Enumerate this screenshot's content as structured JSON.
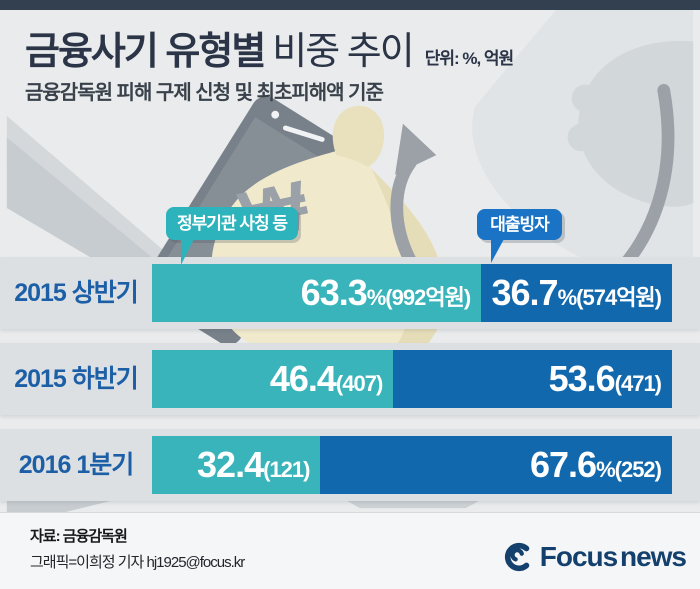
{
  "header": {
    "title_strong": "금융사기 유형별",
    "title_rest": "비중 추이",
    "unit": "단위: %, 억원",
    "subtitle": "금융감독원 피해 구제 신청 및 최초피해액 기준"
  },
  "legend": {
    "teal_label": "정부기관 사칭 등",
    "blue_label": "대출빙자"
  },
  "rows": [
    {
      "label": "2015 상반기",
      "teal_big": "63.3",
      "teal_small": "%(992억원)",
      "blue_big": "36.7",
      "blue_small": "%(574억원)",
      "teal_pct": 63.3
    },
    {
      "label": "2015 하반기",
      "teal_big": "46.4",
      "teal_small": "(407)",
      "blue_big": "53.6",
      "blue_small": "(471)",
      "teal_pct": 46.4
    },
    {
      "label": "2016 1분기",
      "teal_big": "32.4",
      "teal_small": "(121)",
      "blue_big": "67.6",
      "blue_small": "%(252)",
      "teal_pct": 32.4
    }
  ],
  "illustration": {
    "money_symbol": "₩"
  },
  "footer": {
    "source": "자료: 금융감독원",
    "credit": "그래픽=이희정 기자 hj1925@focus.kr",
    "logo_text": "Focus news"
  },
  "colors": {
    "topbar": "#32404f",
    "teal_bar": "#39b4ba",
    "blue_bar": "#1268ad",
    "teal_bubble": "#2cb3bb",
    "blue_bubble": "#1a73c4",
    "row_band": "#dce0e3",
    "row_label_text": "#1d5fa7",
    "logo_navy": "#14406e"
  },
  "chart_data": {
    "type": "bar",
    "orientation": "horizontal-stacked-100pct",
    "title": "금융사기 유형별 비중 추이",
    "unit": "%, 억원",
    "basis": "금융감독원 피해 구제 신청 및 최초피해액 기준",
    "categories": [
      "2015 상반기",
      "2015 하반기",
      "2016 1분기"
    ],
    "series": [
      {
        "name": "정부기관 사칭 등",
        "values_pct": [
          63.3,
          46.4,
          32.4
        ],
        "amounts_eokwon": [
          992,
          407,
          121
        ],
        "color": "#39b4ba"
      },
      {
        "name": "대출빙자",
        "values_pct": [
          36.7,
          53.6,
          67.6
        ],
        "amounts_eokwon": [
          574,
          471,
          252
        ],
        "color": "#1268ad"
      }
    ],
    "legend_position": "above-bars-as-speech-bubbles",
    "source": "금융감독원"
  }
}
